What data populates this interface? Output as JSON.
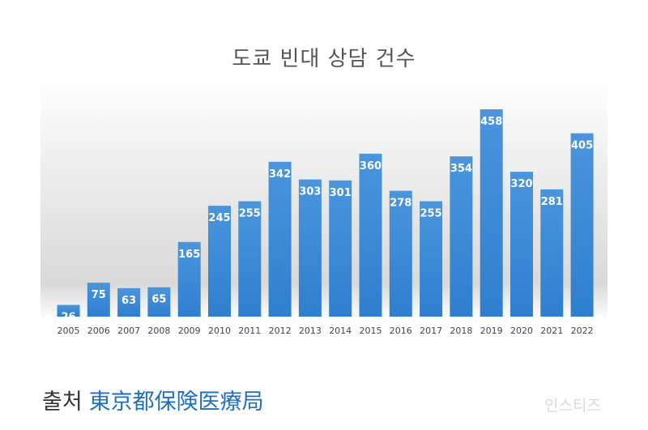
{
  "chart_data": {
    "type": "bar",
    "title": "도쿄 빈대 상담 건수",
    "xlabel": "",
    "ylabel": "",
    "categories": [
      "2005",
      "2006",
      "2007",
      "2008",
      "2009",
      "2010",
      "2011",
      "2012",
      "2013",
      "2014",
      "2015",
      "2016",
      "2017",
      "2018",
      "2019",
      "2020",
      "2021",
      "2022"
    ],
    "values": [
      26,
      75,
      63,
      65,
      165,
      245,
      255,
      342,
      303,
      301,
      360,
      278,
      255,
      354,
      458,
      320,
      281,
      405
    ],
    "ylim": [
      0,
      480
    ],
    "grid": false,
    "legend": "none",
    "bar_color": "#3f8bd6"
  },
  "source": {
    "prefix": "출처",
    "name": "東京都保険医療局"
  },
  "watermark": "인스티즈"
}
